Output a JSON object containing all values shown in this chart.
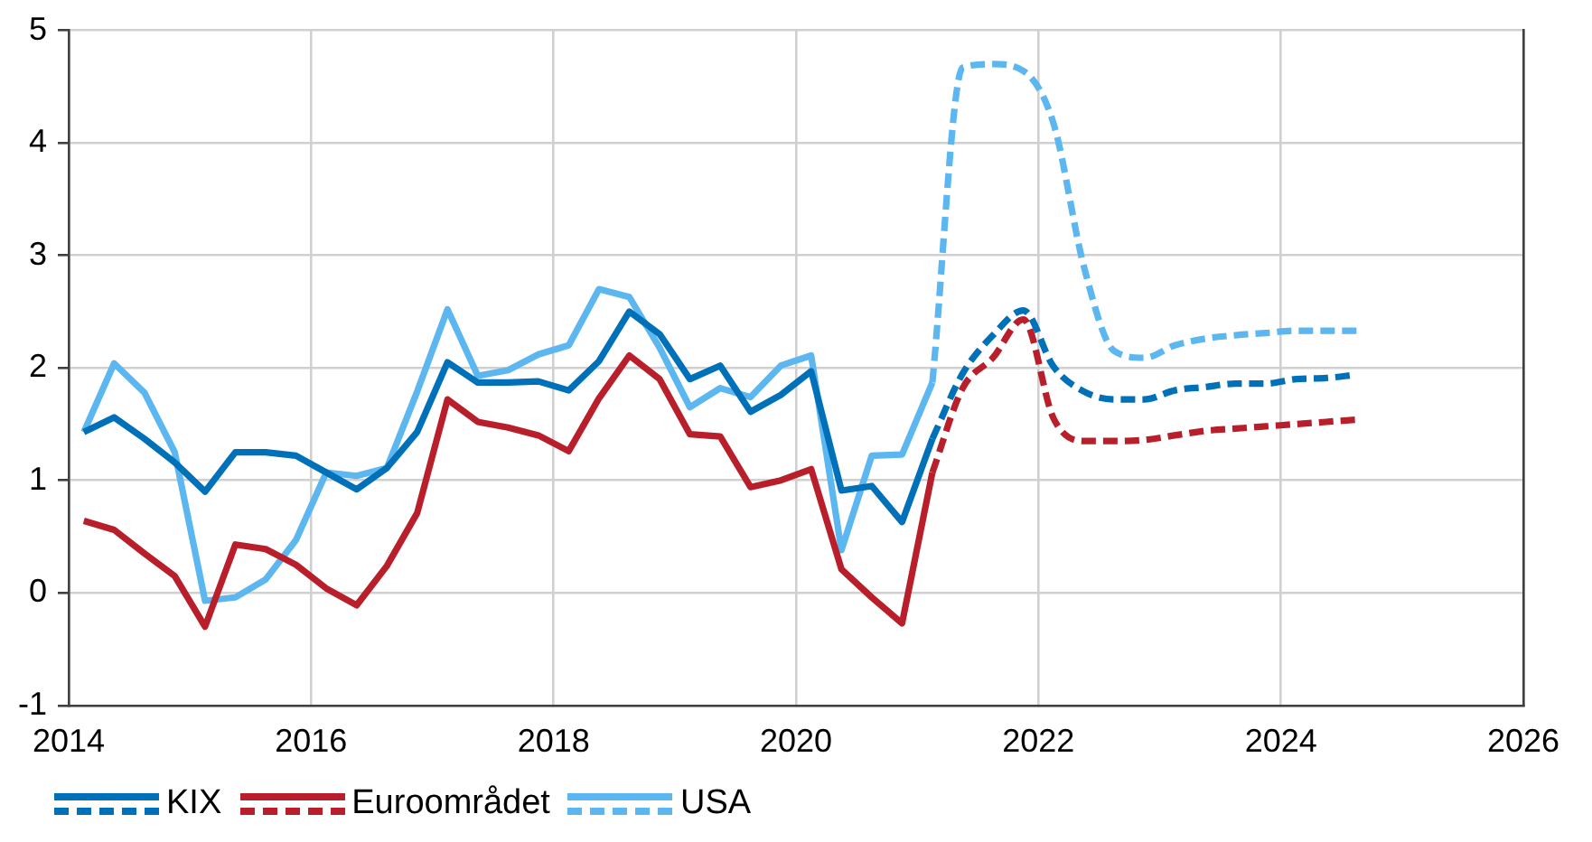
{
  "chart_data": {
    "type": "line",
    "xlim": [
      2014,
      2026
    ],
    "xticks": [
      2014,
      2016,
      2018,
      2020,
      2022,
      2024,
      2026
    ],
    "ylim": [
      -1,
      5
    ],
    "yticks": [
      -1,
      0,
      1,
      2,
      3,
      4,
      5
    ],
    "grid": true,
    "legend": "bottom",
    "marker": "none",
    "series": [
      {
        "name": "KIX",
        "color": "#0070b8",
        "line_style": "solid",
        "x": [
          2014.125,
          2014.375,
          2014.625,
          2014.875,
          2015.125,
          2015.375,
          2015.625,
          2015.875,
          2016.125,
          2016.375,
          2016.625,
          2016.875,
          2017.125,
          2017.375,
          2017.625,
          2017.875,
          2018.125,
          2018.375,
          2018.625,
          2018.875,
          2019.125,
          2019.375,
          2019.625,
          2019.875,
          2020.125,
          2020.375,
          2020.625,
          2020.875,
          2021.125
        ],
        "values": [
          1.43,
          1.56,
          1.37,
          1.16,
          0.9,
          1.25,
          1.25,
          1.22,
          1.07,
          0.92,
          1.11,
          1.43,
          2.05,
          1.87,
          1.87,
          1.88,
          1.8,
          2.06,
          2.5,
          2.3,
          1.9,
          2.02,
          1.61,
          1.76,
          1.97,
          0.91,
          0.95,
          0.63,
          1.37
        ]
      },
      {
        "color": "#0070b8",
        "line_style": "dashed",
        "x": [
          2021.125,
          2021.375,
          2021.625,
          2021.875,
          2022.125,
          2022.375,
          2022.625,
          2022.875,
          2023.125,
          2023.375,
          2023.625,
          2023.875,
          2024.125,
          2024.375,
          2024.625
        ],
        "values": [
          1.37,
          1.95,
          2.29,
          2.51,
          2.01,
          1.79,
          1.72,
          1.72,
          1.8,
          1.83,
          1.86,
          1.86,
          1.9,
          1.91,
          1.94
        ]
      },
      {
        "name": "Euroområdet",
        "color": "#b81f2b",
        "line_style": "solid",
        "x": [
          2014.125,
          2014.375,
          2014.625,
          2014.875,
          2015.125,
          2015.375,
          2015.625,
          2015.875,
          2016.125,
          2016.375,
          2016.625,
          2016.875,
          2017.125,
          2017.375,
          2017.625,
          2017.875,
          2018.125,
          2018.375,
          2018.625,
          2018.875,
          2019.125,
          2019.375,
          2019.625,
          2019.875,
          2020.125,
          2020.375,
          2020.625,
          2020.875,
          2021.125
        ],
        "values": [
          0.64,
          0.56,
          0.35,
          0.15,
          -0.3,
          0.43,
          0.39,
          0.25,
          0.04,
          -0.11,
          0.24,
          0.71,
          1.72,
          1.52,
          1.47,
          1.4,
          1.26,
          1.73,
          2.11,
          1.9,
          1.41,
          1.39,
          0.94,
          1.0,
          1.1,
          0.21,
          -0.04,
          -0.27,
          1.07
        ]
      },
      {
        "color": "#b81f2b",
        "line_style": "dashed",
        "x": [
          2021.125,
          2021.375,
          2021.625,
          2021.875,
          2022.125,
          2022.375,
          2022.625,
          2022.875,
          2023.125,
          2023.375,
          2023.625,
          2023.875,
          2024.125,
          2024.375,
          2024.625
        ],
        "values": [
          1.07,
          1.82,
          2.09,
          2.43,
          1.55,
          1.35,
          1.35,
          1.36,
          1.4,
          1.44,
          1.46,
          1.48,
          1.5,
          1.52,
          1.54
        ]
      },
      {
        "name": "USA",
        "color": "#5cb6f0",
        "line_style": "solid",
        "x": [
          2014.125,
          2014.375,
          2014.625,
          2014.875,
          2015.125,
          2015.375,
          2015.625,
          2015.875,
          2016.125,
          2016.375,
          2016.625,
          2016.875,
          2017.125,
          2017.375,
          2017.625,
          2017.875,
          2018.125,
          2018.375,
          2018.625,
          2018.875,
          2019.125,
          2019.375,
          2019.625,
          2019.875,
          2020.125,
          2020.375,
          2020.625,
          2020.875,
          2021.125
        ],
        "values": [
          1.43,
          2.04,
          1.78,
          1.25,
          -0.07,
          -0.04,
          0.12,
          0.47,
          1.07,
          1.04,
          1.11,
          1.79,
          2.52,
          1.93,
          1.98,
          2.12,
          2.2,
          2.7,
          2.63,
          2.18,
          1.65,
          1.82,
          1.74,
          2.02,
          2.11,
          0.38,
          1.22,
          1.23,
          1.87
        ]
      },
      {
        "color": "#5cb6f0",
        "line_style": "dashed",
        "x": [
          2021.125,
          2021.375,
          2021.625,
          2021.875,
          2022.125,
          2022.375,
          2022.625,
          2022.875,
          2023.125,
          2023.375,
          2023.625,
          2023.875,
          2024.125,
          2024.375,
          2024.625
        ],
        "values": [
          1.87,
          4.67,
          4.7,
          4.64,
          4.17,
          2.9,
          2.15,
          2.09,
          2.2,
          2.26,
          2.29,
          2.31,
          2.33,
          2.33,
          2.33
        ]
      }
    ]
  }
}
